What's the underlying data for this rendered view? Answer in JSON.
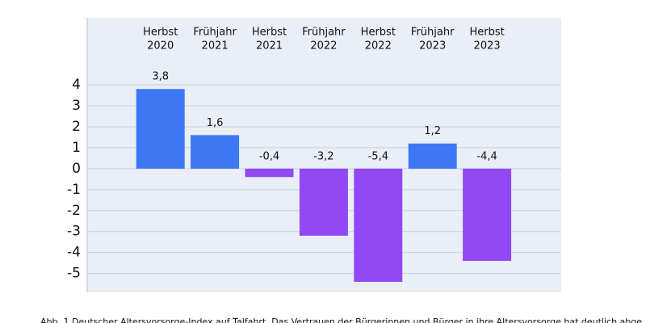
{
  "chart_data": {
    "type": "bar",
    "categories": [
      [
        "Herbst",
        "2020"
      ],
      [
        "Frühjahr",
        "2021"
      ],
      [
        "Herbst",
        "2021"
      ],
      [
        "Frühjahr",
        "2022"
      ],
      [
        "Herbst",
        "2022"
      ],
      [
        "Frühjahr",
        "2023"
      ],
      [
        "Herbst",
        "2023"
      ]
    ],
    "values": [
      3.8,
      1.6,
      -0.4,
      -3.2,
      -5.4,
      1.2,
      -4.4
    ],
    "value_labels": [
      "3,8",
      "1,6",
      "-0,4",
      "-3,2",
      "-5,4",
      "1,2",
      "-4,4"
    ],
    "colors": [
      "#3d78f4",
      "#3d78f4",
      "#9149f5",
      "#9149f5",
      "#9149f5",
      "#3d78f4",
      "#9149f5"
    ],
    "ylim": [
      -5.9,
      7.2
    ],
    "yticks": [
      4,
      3,
      2,
      1,
      0,
      -1,
      -2,
      -3,
      -4,
      -5
    ],
    "grid": true,
    "caption": "Abb. 1 Deutscher Altersvorsorge-Index auf Talfahrt. Das Vertrauen der Bürgerinnen und Bürger in ihre Altersvorsorge hat deutlich abge"
  }
}
